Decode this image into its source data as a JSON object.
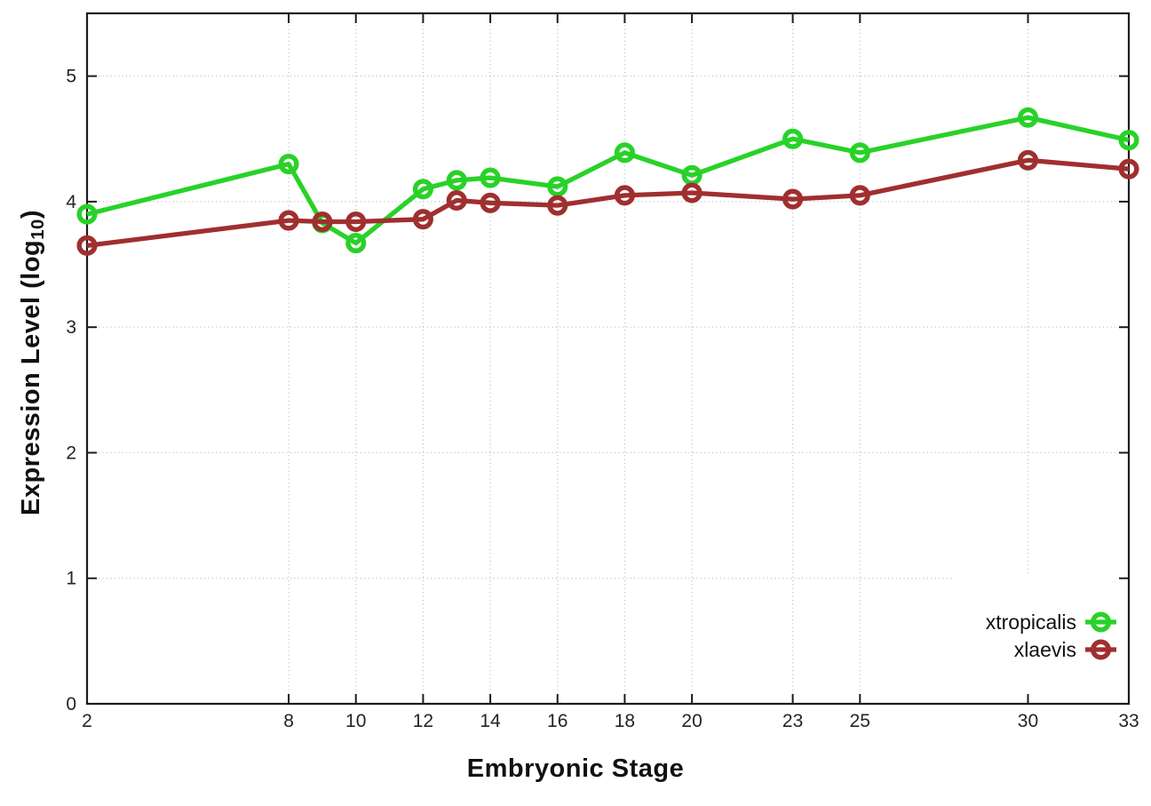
{
  "chart_data": {
    "type": "line",
    "title": "",
    "xlabel": "Embryonic Stage",
    "ylabel": "Expression Level (log10)",
    "ylabel_parts": {
      "prefix": "Expression Level (log",
      "sub": "10",
      "suffix": ")"
    },
    "xlim": [
      2,
      33
    ],
    "ylim": [
      0,
      5.5
    ],
    "grid": true,
    "legend_position": "inside bottom-right, opaque background, no border",
    "x_ticks": [
      2,
      8,
      10,
      12,
      14,
      16,
      18,
      20,
      23,
      25,
      30,
      33
    ],
    "y_ticks": [
      0,
      1,
      2,
      3,
      4,
      5
    ],
    "x": [
      2,
      8,
      9,
      10,
      12,
      13,
      14,
      16,
      18,
      20,
      23,
      25,
      30,
      33
    ],
    "series": [
      {
        "name": "xtropicalis",
        "color": "#28d228",
        "marker": "open-circle",
        "values": [
          3.9,
          4.3,
          3.83,
          3.67,
          4.1,
          4.17,
          4.19,
          4.12,
          4.39,
          4.21,
          4.5,
          4.39,
          4.67,
          4.49
        ]
      },
      {
        "name": "xlaevis",
        "color": "#a02f2f",
        "marker": "open-circle",
        "values": [
          3.65,
          3.85,
          3.84,
          3.84,
          3.86,
          4.01,
          3.99,
          3.97,
          4.05,
          4.07,
          4.02,
          4.05,
          4.33,
          4.26
        ]
      }
    ],
    "style": {
      "background": "#ffffff",
      "border_color": "#1c1c1c",
      "grid_color": "#b9b9bf",
      "tick_label_color": "#242424",
      "text_color": "#111111"
    }
  }
}
